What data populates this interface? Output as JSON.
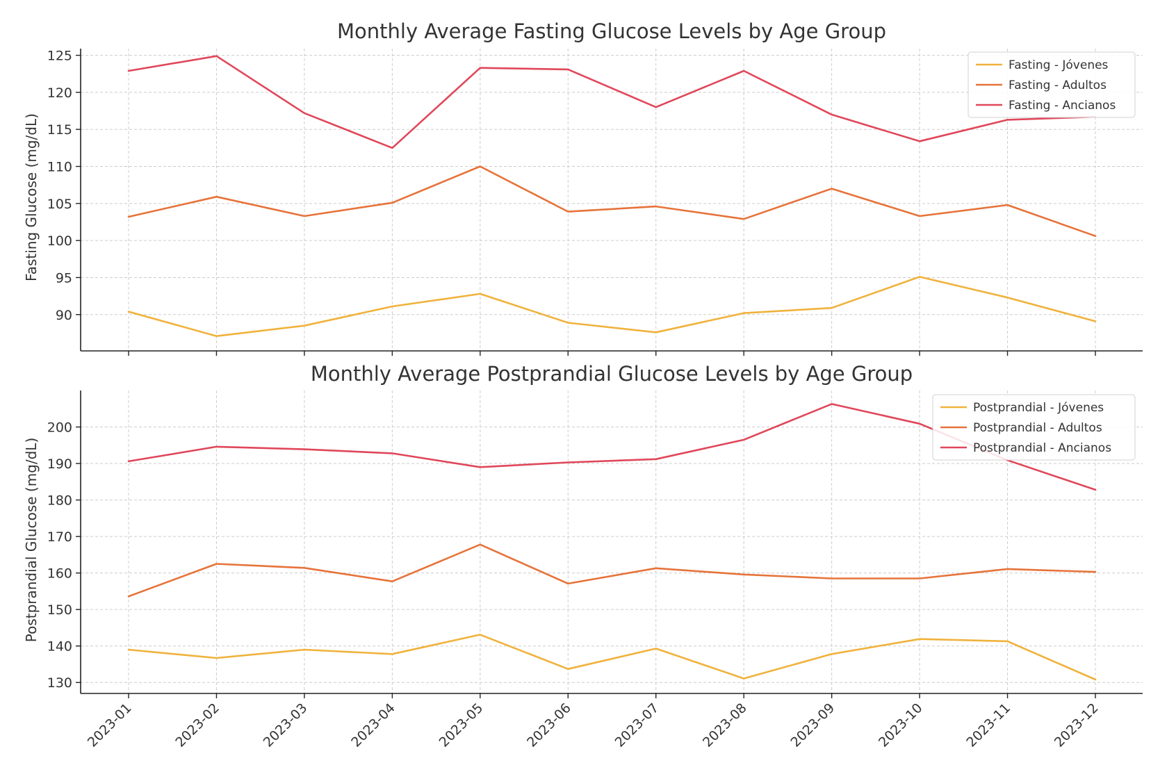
{
  "chart_data": [
    {
      "type": "line",
      "title": "Monthly Average Fasting Glucose Levels by Age Group",
      "xlabel": "",
      "ylabel": "Fasting Glucose (mg/dL)",
      "categories": [
        "2023-01",
        "2023-02",
        "2023-03",
        "2023-04",
        "2023-05",
        "2023-06",
        "2023-07",
        "2023-08",
        "2023-09",
        "2023-10",
        "2023-11",
        "2023-12"
      ],
      "ylim": [
        85.1,
        125.9
      ],
      "yticks": [
        90,
        95,
        100,
        105,
        110,
        115,
        120,
        125
      ],
      "grid": true,
      "legend_position": "top-right",
      "series": [
        {
          "name": "Fasting - Jóvenes",
          "color": "#f0b23c",
          "values": [
            90.4,
            87.1,
            88.5,
            91.1,
            92.8,
            88.9,
            87.6,
            90.2,
            90.9,
            95.1,
            92.3,
            89.1
          ]
        },
        {
          "name": "Fasting - Adultos",
          "color": "#e6733a",
          "values": [
            103.2,
            105.9,
            103.3,
            105.1,
            110.0,
            103.9,
            104.6,
            102.9,
            107.0,
            103.3,
            104.8,
            100.6
          ]
        },
        {
          "name": "Fasting - Ancianos",
          "color": "#e0475a",
          "values": [
            122.9,
            124.9,
            117.2,
            112.5,
            123.3,
            123.1,
            118.0,
            122.9,
            117.0,
            113.4,
            116.3,
            116.7
          ]
        }
      ]
    },
    {
      "type": "line",
      "title": "Monthly Average Postprandial Glucose Levels by Age Group",
      "xlabel": "",
      "ylabel": "Postprandial Glucose (mg/dL)",
      "categories": [
        "2023-01",
        "2023-02",
        "2023-03",
        "2023-04",
        "2023-05",
        "2023-06",
        "2023-07",
        "2023-08",
        "2023-09",
        "2023-10",
        "2023-11",
        "2023-12"
      ],
      "ylim": [
        127.0,
        210.0
      ],
      "yticks": [
        130,
        140,
        150,
        160,
        170,
        180,
        190,
        200
      ],
      "grid": true,
      "legend_position": "top-right",
      "series": [
        {
          "name": "Postprandial - Jóvenes",
          "color": "#f0b23c",
          "values": [
            139.0,
            136.7,
            139.0,
            137.8,
            143.1,
            133.7,
            139.3,
            131.1,
            137.8,
            141.9,
            141.3,
            130.8
          ]
        },
        {
          "name": "Postprandial - Adultos",
          "color": "#e6733a",
          "values": [
            153.6,
            162.5,
            161.4,
            157.7,
            167.8,
            157.1,
            161.3,
            159.6,
            158.5,
            158.5,
            161.1,
            160.3
          ]
        },
        {
          "name": "Postprandial - Ancianos",
          "color": "#e0475a",
          "values": [
            190.6,
            194.6,
            193.9,
            192.8,
            189.0,
            190.3,
            191.2,
            196.5,
            206.3,
            200.9,
            190.9,
            182.8
          ]
        }
      ]
    }
  ]
}
